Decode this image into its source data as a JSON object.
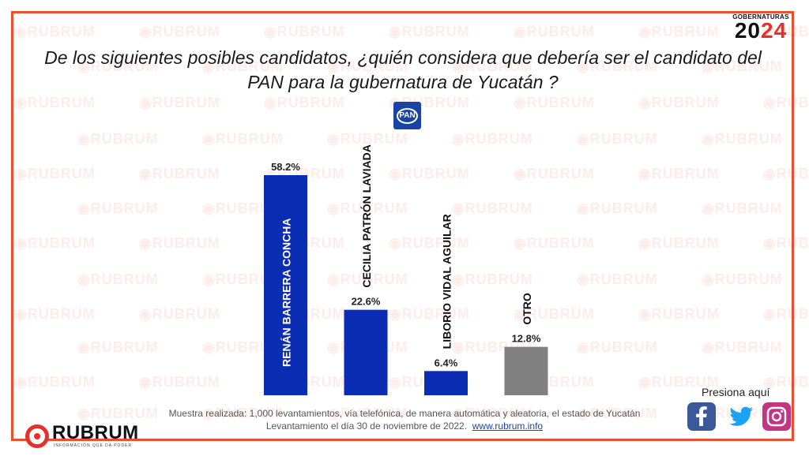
{
  "watermark_text": "RUBRUM",
  "badge": {
    "top": "GOBERNATURAS",
    "year_a": "20",
    "year_b": "24"
  },
  "question": "De los siguientes posibles candidatos, ¿quién considera que debería ser el candidato del PAN para la gubernatura de Yucatán ?",
  "party_logo": "PAN",
  "chart_data": {
    "type": "bar",
    "categories": [
      "RENÁN BARRERA CONCHA",
      "CECILIA PATRÓN LAVIADA",
      "LIBORIO VIDAL AGUILAR",
      "OTRO"
    ],
    "values": [
      58.2,
      22.6,
      6.4,
      12.8
    ],
    "value_labels": [
      "58.2%",
      "22.6%",
      "6.4%",
      "12.8%"
    ],
    "colors": [
      "#0a2db4",
      "#0a2db4",
      "#0a2db4",
      "#808080"
    ],
    "ylim": [
      0,
      58.2
    ],
    "grid": false,
    "legend": "none"
  },
  "footnote": {
    "line1": "Muestra realizada: 1,000 levantamientos, vía telefónica, de manera automática y aleatoria, el estado de Yucatán",
    "line2": "Levantamiento el día 30 de noviembre de 2022.",
    "link": "www.rubrum.info"
  },
  "logo": {
    "name": "RUBRUM",
    "tagline": "INFORMACIÓN QUE DA PODER"
  },
  "social": {
    "label": "Presiona aquí",
    "icons": [
      "facebook-icon",
      "twitter-icon",
      "instagram-icon"
    ]
  }
}
